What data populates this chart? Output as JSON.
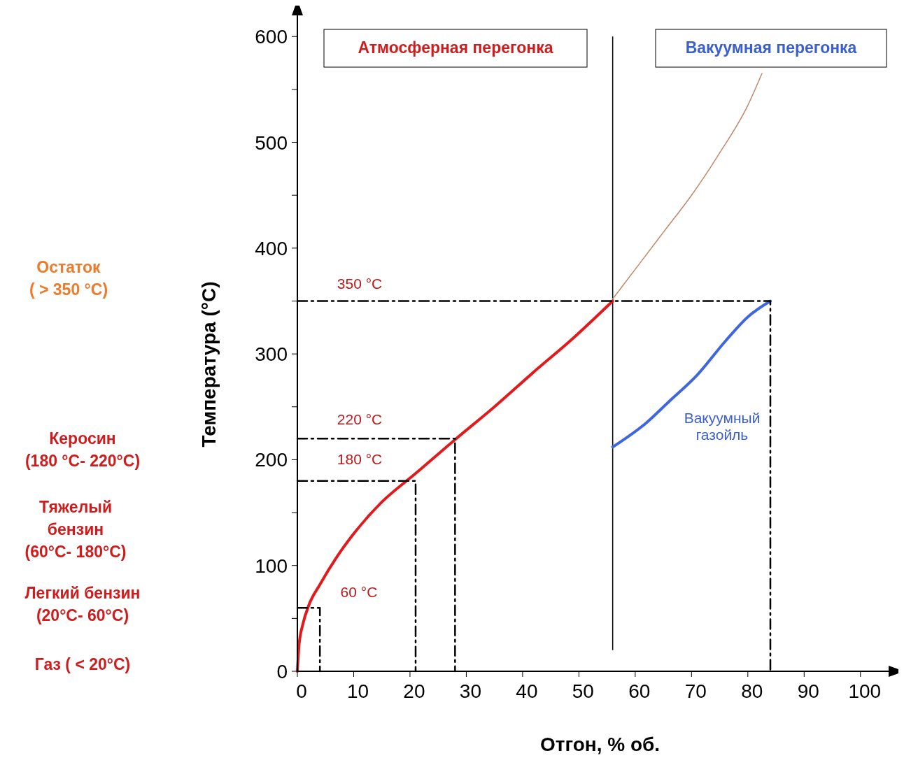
{
  "chart_data": {
    "type": "line",
    "xlabel": "Отгон, % об.",
    "ylabel": "Температура (°C)",
    "xlim": [
      0,
      105
    ],
    "ylim": [
      0,
      620
    ],
    "xticks": [
      0,
      10,
      20,
      30,
      40,
      50,
      60,
      70,
      80,
      90,
      100
    ],
    "yticks": [
      0,
      {
        "value": 50,
        "label": null
      },
      100,
      {
        "value": 150,
        "label": null
      },
      200,
      {
        "value": 250,
        "label": null
      },
      300,
      {
        "value": 350,
        "label": null
      },
      400,
      {
        "value": 450,
        "label": null
      },
      500,
      {
        "value": 550,
        "label": null
      },
      600
    ],
    "series": [
      {
        "color": "#e31a1c",
        "x": [
          0,
          0.3,
          1,
          2,
          4,
          7,
          10,
          15,
          21,
          28,
          35,
          42,
          49,
          56
        ],
        "values": [
          0,
          25,
          45,
          62,
          82,
          108,
          130,
          160,
          187,
          219,
          250,
          283,
          315,
          350
        ]
      },
      {
        "color": "#3f66e0",
        "x": [
          56,
          62,
          66,
          71,
          76,
          80,
          84
        ],
        "values": [
          212,
          235,
          255,
          280,
          312,
          335,
          350
        ]
      },
      {
        "color": "#c0896a",
        "x": [
          56,
          60,
          65,
          70,
          75,
          80,
          82.5
        ],
        "values": [
          352,
          380,
          415,
          450,
          490,
          535,
          565
        ]
      },
      {
        "color": "#000000",
        "line_style": "dashed",
        "x": [
          0,
          4,
          4
        ],
        "values": [
          60,
          60,
          0
        ]
      },
      {
        "color": "#000000",
        "line_style": "dashed",
        "x": [
          0,
          21,
          21
        ],
        "values": [
          180,
          180,
          0
        ]
      },
      {
        "color": "#000000",
        "line_style": "dashed",
        "x": [
          0,
          28,
          28
        ],
        "values": [
          220,
          220,
          0
        ]
      },
      {
        "color": "#000000",
        "line_style": "dashed",
        "x": [
          0,
          84,
          84
        ],
        "values": [
          350,
          350,
          0
        ]
      }
    ],
    "ref_lines": [
      {
        "axis": "x",
        "value": 56,
        "color": "#000000"
      }
    ],
    "annotations": [
      "60 °C",
      "180 °C",
      "220 °C",
      "350 °C",
      "Вакуумный\nгазойль",
      "Атмосферная перегонка",
      "Вакуумная  перегонка",
      "Остаток\n( > 350 °C)",
      "Керосин\n(180 °C- 220°C)",
      "Тяжелый\nбензин\n(60°C- 180°C)",
      "Легкий бензин\n(20°C- 60°C)",
      "Газ ( < 20°C)"
    ]
  }
}
